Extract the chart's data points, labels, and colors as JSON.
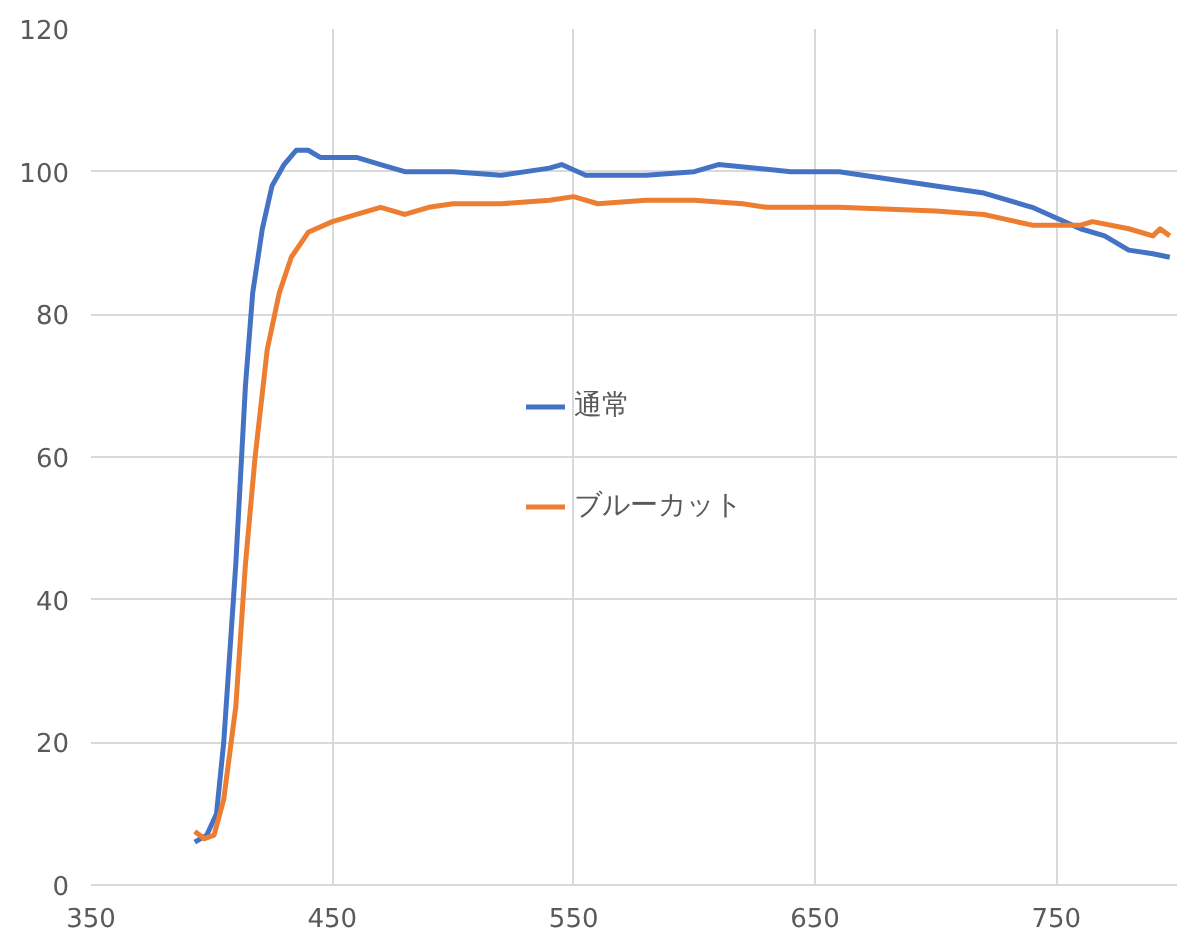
{
  "chart_data": {
    "type": "line",
    "xlim": [
      350,
      800
    ],
    "ylim": [
      0,
      120
    ],
    "xticks": [
      350,
      450,
      550,
      650,
      750
    ],
    "yticks": [
      0,
      20,
      40,
      60,
      80,
      100,
      120
    ],
    "grid": true,
    "legend": "center",
    "marker": "none",
    "line_style": "solid",
    "series": [
      {
        "name": "通常",
        "color": "#4472c4",
        "x": [
          393,
          398,
          402,
          405,
          410,
          414,
          417,
          421,
          425,
          430,
          435,
          440,
          445,
          460,
          470,
          480,
          500,
          520,
          540,
          545,
          555,
          580,
          600,
          610,
          640,
          660,
          700,
          720,
          740,
          760,
          770,
          780,
          790,
          797
        ],
        "values": [
          6,
          7,
          10,
          20,
          45,
          70,
          83,
          92,
          98,
          101,
          103,
          103,
          102,
          102,
          101,
          100,
          100,
          99.5,
          100.5,
          101,
          99.5,
          99.5,
          100,
          101,
          100,
          100,
          98,
          97,
          95,
          92,
          91,
          89,
          88.5,
          88
        ]
      },
      {
        "name": "ブルーカット",
        "color": "#ed7d31",
        "x": [
          393,
          397,
          401,
          405,
          410,
          414,
          418,
          423,
          428,
          433,
          440,
          450,
          460,
          470,
          480,
          490,
          500,
          520,
          540,
          550,
          560,
          580,
          600,
          620,
          630,
          660,
          700,
          720,
          740,
          760,
          765,
          780,
          790,
          793,
          797
        ],
        "values": [
          7.5,
          6.5,
          7,
          12,
          25,
          45,
          60,
          75,
          83,
          88,
          91.5,
          93,
          94,
          95,
          94,
          95,
          95.5,
          95.5,
          96,
          96.5,
          95.5,
          96,
          96,
          95.5,
          95,
          95,
          94.5,
          94,
          92.5,
          92.5,
          93,
          92,
          91,
          92,
          91
        ]
      }
    ]
  }
}
